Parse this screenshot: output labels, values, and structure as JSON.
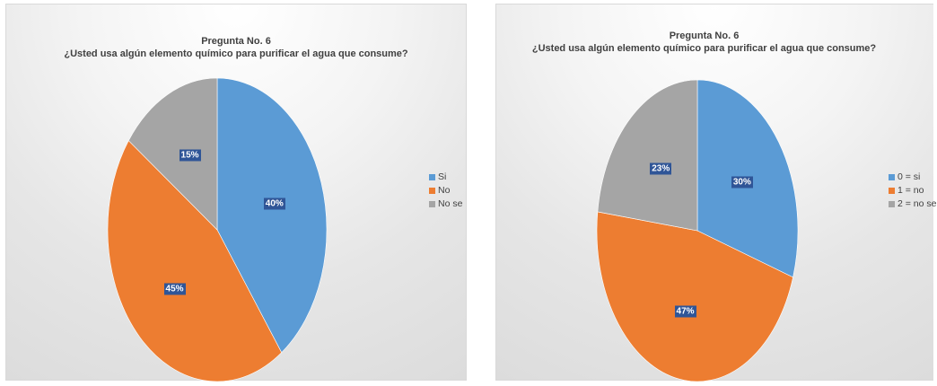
{
  "chart_data": [
    {
      "type": "pie",
      "title": "Pregunta No. 6",
      "subtitle": "¿Usted usa algún elemento químico para purificar el agua que consume?",
      "categories": [
        "Si",
        "No",
        "No se"
      ],
      "values": [
        40,
        45,
        15
      ],
      "data_labels": [
        "40%",
        "45%",
        "15%"
      ],
      "colors": [
        "#5b9bd5",
        "#ed7d31",
        "#a5a5a5"
      ],
      "legend": "right"
    },
    {
      "type": "pie",
      "title": "Pregunta No. 6",
      "subtitle": "¿Usted usa algún elemento químico para purificar el agua que consume?",
      "categories": [
        "0 = si",
        "1 = no",
        "2 = no se"
      ],
      "values": [
        30,
        47,
        23
      ],
      "data_labels": [
        "30%",
        "47%",
        "23%"
      ],
      "colors": [
        "#5b9bd5",
        "#ed7d31",
        "#a5a5a5"
      ],
      "legend": "right"
    }
  ]
}
